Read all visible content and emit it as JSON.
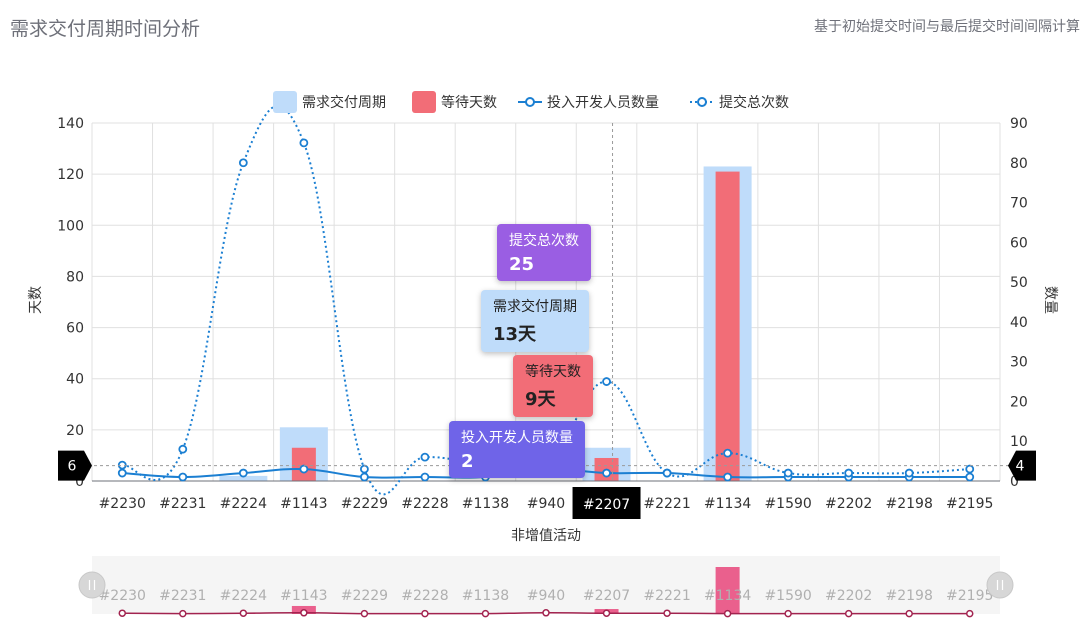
{
  "header": {
    "title": "需求交付周期时间分析",
    "subtitle": "基于初始提交时间与最后提交时间间隔计算"
  },
  "chart_data": {
    "type": "bar",
    "categories": [
      "#2230",
      "#2231",
      "#2224",
      "#1143",
      "#2229",
      "#2228",
      "#1138",
      "#940",
      "#2207",
      "#2221",
      "#1134",
      "#1590",
      "#2202",
      "#2198",
      "#2195"
    ],
    "xlabel": "非增值活动",
    "y_left": {
      "label": "天数",
      "ticks": [
        0,
        20,
        40,
        60,
        80,
        100,
        120,
        140
      ],
      "ylim": [
        0,
        140
      ]
    },
    "y_right": {
      "label": "数量",
      "ticks": [
        0,
        10,
        20,
        30,
        40,
        50,
        60,
        70,
        80,
        90
      ],
      "ylim": [
        0,
        90
      ]
    },
    "series": [
      {
        "name": "需求交付周期",
        "type": "bar",
        "axis": "left",
        "color": "#bfdcfa",
        "values": [
          0,
          0,
          2,
          21,
          0,
          0,
          0,
          0,
          13,
          0,
          123,
          0,
          0,
          0,
          0
        ]
      },
      {
        "name": "等待天数",
        "type": "bar",
        "axis": "left",
        "color": "#f26d77",
        "values": [
          0,
          0,
          0,
          13,
          0,
          0,
          0,
          0,
          9,
          0,
          121,
          0,
          0,
          0,
          0
        ]
      },
      {
        "name": "投入开发人员数量",
        "type": "line",
        "axis": "right",
        "style": "solid",
        "color": "#1b7fd2",
        "values": [
          2,
          1,
          2,
          3,
          1,
          1,
          1,
          3,
          2,
          2,
          1,
          1,
          1,
          1,
          1
        ]
      },
      {
        "name": "提交总次数",
        "type": "line",
        "axis": "right",
        "style": "dotted",
        "color": "#1b7fd2",
        "values": [
          4,
          8,
          80,
          85,
          3,
          6,
          4,
          3,
          25,
          2,
          7,
          2,
          2,
          2,
          3
        ]
      }
    ],
    "legend": "top-center",
    "grid": true,
    "pointer": {
      "category": "#2207",
      "left_value": "6",
      "right_value": "4"
    },
    "tooltips": [
      {
        "name": "提交总次数",
        "value": "25",
        "bg": "#9a5ee3",
        "fg": "#ffffff"
      },
      {
        "name": "需求交付周期",
        "value": "13天",
        "bg": "#bfdcfa",
        "fg": "#222222"
      },
      {
        "name": "等待天数",
        "value": "9天",
        "bg": "#f26d77",
        "fg": "#222222"
      },
      {
        "name": "投入开发人员数量",
        "value": "2",
        "bg": "#6f64e8",
        "fg": "#ffffff"
      }
    ],
    "data_zoom": {
      "range": "full",
      "overview_color": "#e8457a"
    }
  }
}
